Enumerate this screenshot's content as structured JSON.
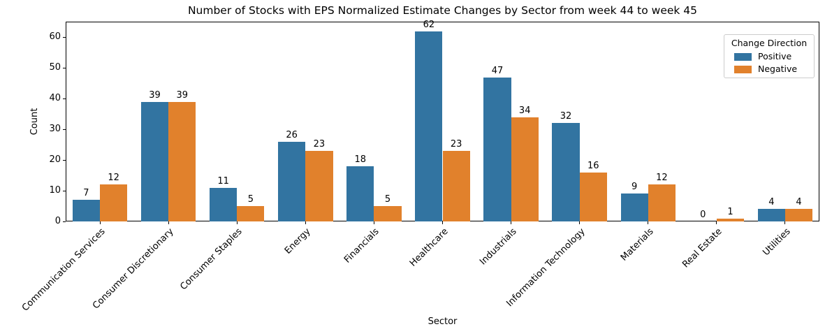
{
  "chart_data": {
    "type": "bar",
    "title": "Number of Stocks with EPS Normalized Estimate Changes by Sector from week 44 to week 45",
    "xlabel": "Sector",
    "ylabel": "Count",
    "categories": [
      "Communication Services",
      "Consumer Discretionary",
      "Consumer Staples",
      "Energy",
      "Financials",
      "Healthcare",
      "Industrials",
      "Information Technology",
      "Materials",
      "Real Estate",
      "Utilities"
    ],
    "series": [
      {
        "name": "Positive",
        "color": "#3274a1",
        "values": [
          7,
          39,
          11,
          26,
          18,
          62,
          47,
          32,
          9,
          0,
          4
        ]
      },
      {
        "name": "Negative",
        "color": "#e1812c",
        "values": [
          12,
          39,
          5,
          23,
          5,
          23,
          34,
          16,
          12,
          1,
          4
        ]
      }
    ],
    "ylim": [
      0,
      65.1
    ],
    "yticks": [
      0,
      10,
      20,
      30,
      40,
      50,
      60
    ],
    "ytick_labels": [
      "0",
      "10",
      "20",
      "30",
      "40",
      "50",
      "60"
    ],
    "grid": false,
    "bar_value_labels": true,
    "legend": {
      "title": "Change Direction",
      "position": "upper right"
    }
  }
}
